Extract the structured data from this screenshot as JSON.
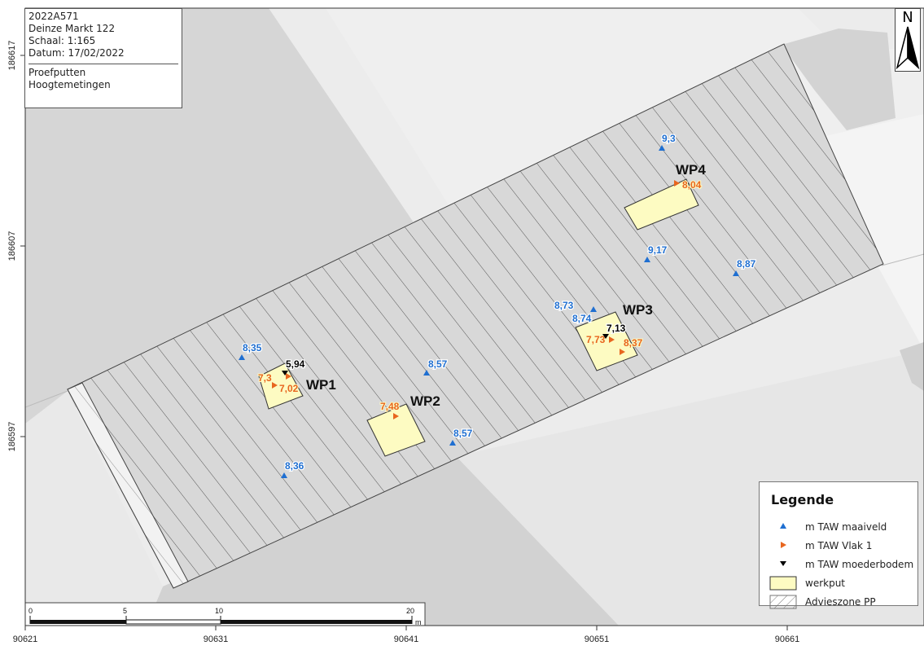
{
  "info": {
    "project": "2022A571",
    "location": "Deinze  Markt 122",
    "scale": "Schaal: 1:165",
    "date": "Datum: 17/02/2022",
    "layer1": "Proefputten",
    "layer2": "Hoogtemetingen"
  },
  "north_label": "N",
  "x_ticks": [
    "90621",
    "90631",
    "90641",
    "90651",
    "90661"
  ],
  "y_ticks": [
    "186617",
    "186607",
    "186597"
  ],
  "scalebar": {
    "labels": [
      "0",
      "5",
      "10",
      "20"
    ],
    "unit": "m"
  },
  "parcel_numbers": [
    "",
    ""
  ],
  "pits": [
    {
      "label": "WP1"
    },
    {
      "label": "WP2"
    },
    {
      "label": "WP3"
    },
    {
      "label": "WP4"
    }
  ],
  "maaiveld": [
    {
      "value": "9,3"
    },
    {
      "value": "9,17"
    },
    {
      "value": "8,87"
    },
    {
      "value": "8,73"
    },
    {
      "value": "8,74"
    },
    {
      "value": "8,57"
    },
    {
      "value": "8,57"
    },
    {
      "value": "8,35"
    },
    {
      "value": "8,36"
    }
  ],
  "vlak1": [
    {
      "value": "8,04"
    },
    {
      "value": "7,73"
    },
    {
      "value": "8,37"
    },
    {
      "value": "7,48"
    },
    {
      "value": "7,3"
    },
    {
      "value": "7,02"
    }
  ],
  "moederbodem": [
    {
      "value": "7,13"
    },
    {
      "value": "5,94"
    }
  ],
  "legend": {
    "title": "Legende",
    "items": [
      {
        "label": "m TAW maaiveld",
        "color": "#1f6fd1"
      },
      {
        "label": "m TAW Vlak 1",
        "color": "#e8661f"
      },
      {
        "label": "m TAW moederbodem",
        "color": "#000000"
      },
      {
        "label": "werkput",
        "color": "#fdfbc2"
      },
      {
        "label": "Advieszone PP",
        "color": "#ffffff"
      }
    ]
  },
  "colors": {
    "building_grey": "#d2d2d2",
    "light_grey": "#e8e8e8",
    "hatch_line": "#555555",
    "maaiveld_label": "#1f6fd1",
    "vlak1_label": "#e8661f"
  }
}
